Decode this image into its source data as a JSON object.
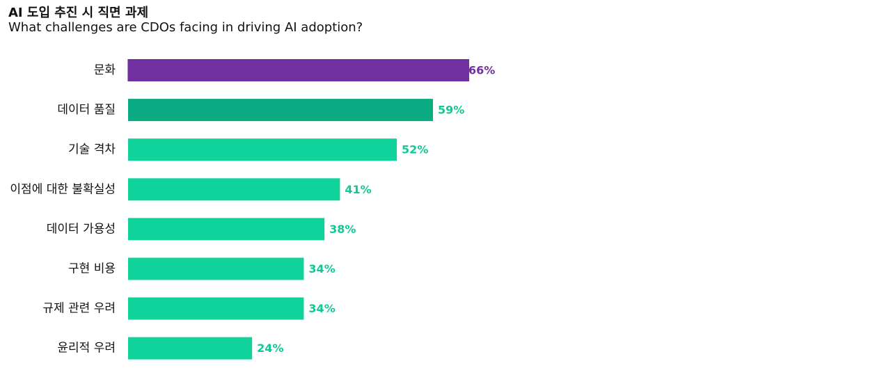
{
  "chart_data": {
    "type": "bar",
    "orientation": "horizontal",
    "title": "AI 도입 추진 시 직면 과제",
    "subtitle": "What challenges are CDOs facing in driving AI adoption?",
    "categories": [
      "문화",
      "데이터 품질",
      "기술 격차",
      "이점에 대한 불확실성",
      "데이터 가용성",
      "구현 비용",
      "규제 관련 우려",
      "윤리적 우려"
    ],
    "values": [
      66,
      59,
      52,
      41,
      38,
      34,
      34,
      24
    ],
    "value_labels": [
      "66%",
      "59%",
      "52%",
      "41%",
      "38%",
      "34%",
      "34%",
      "24%"
    ],
    "unit": "%",
    "xlim": [
      0,
      100
    ],
    "grid": false,
    "legend": "none",
    "colors": {
      "bars": [
        "#7030A0",
        "#0AAA82",
        "#10D29B",
        "#10D29B",
        "#10D29B",
        "#10D29B",
        "#10D29B",
        "#10D29B"
      ],
      "labels": [
        "#7030A0",
        "#10C896",
        "#10C896",
        "#10C896",
        "#10C896",
        "#10C896",
        "#10C896",
        "#10C896"
      ]
    }
  }
}
